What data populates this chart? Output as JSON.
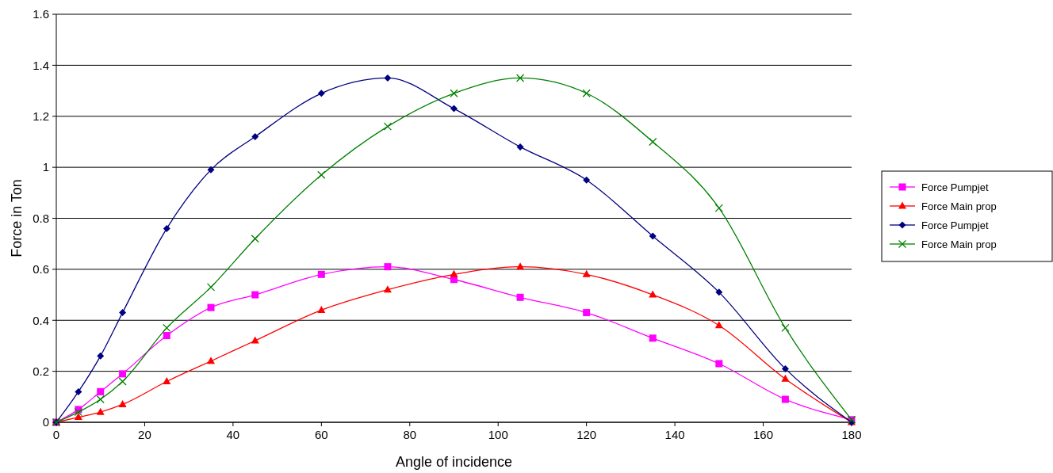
{
  "chart_data": {
    "type": "line",
    "xlabel": "Angle of incidence",
    "ylabel": "Force in Ton",
    "x": [
      0,
      5,
      10,
      15,
      25,
      35,
      45,
      60,
      75,
      90,
      105,
      120,
      135,
      150,
      165,
      180
    ],
    "series": [
      {
        "name": "Force Pumpjet",
        "color": "#ff00ff",
        "marker": "square",
        "values": [
          0,
          0.05,
          0.12,
          0.19,
          0.34,
          0.45,
          0.5,
          0.58,
          0.61,
          0.56,
          0.49,
          0.43,
          0.33,
          0.23,
          0.09,
          0.01
        ]
      },
      {
        "name": "Force Main prop",
        "color": "#ff0000",
        "marker": "triangle",
        "values": [
          0,
          0.02,
          0.04,
          0.07,
          0.16,
          0.24,
          0.32,
          0.44,
          0.52,
          0.58,
          0.61,
          0.58,
          0.5,
          0.38,
          0.17,
          0
        ]
      },
      {
        "name": "Force Pumpjet",
        "color": "#000080",
        "marker": "diamond",
        "values": [
          0,
          0.12,
          0.26,
          0.43,
          0.76,
          0.99,
          1.12,
          1.29,
          1.35,
          1.23,
          1.08,
          0.95,
          0.73,
          0.51,
          0.21,
          0
        ]
      },
      {
        "name": "Force Main prop",
        "color": "#008000",
        "marker": "cross",
        "values": [
          0,
          0.04,
          0.09,
          0.16,
          0.37,
          0.53,
          0.72,
          0.97,
          1.16,
          1.29,
          1.35,
          1.29,
          1.1,
          0.84,
          0.37,
          0.01
        ]
      }
    ],
    "xlim": [
      0,
      180
    ],
    "xticks": [
      0,
      20,
      40,
      60,
      80,
      100,
      120,
      140,
      160,
      180
    ],
    "ylim": [
      0,
      1.6
    ],
    "yticks": [
      0,
      0.2,
      0.4,
      0.6,
      0.8,
      1,
      1.2,
      1.4,
      1.6
    ],
    "grid": "y",
    "legend": "right",
    "line_style": "solid"
  }
}
